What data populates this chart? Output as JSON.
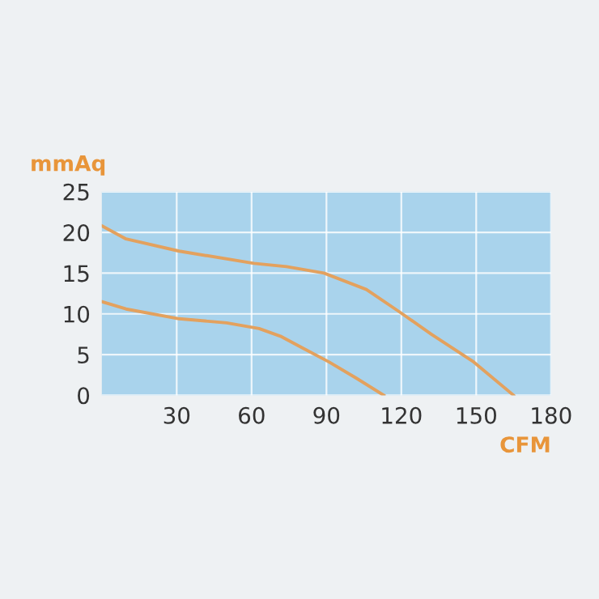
{
  "chart_data": {
    "type": "line",
    "xlabel": "CFM",
    "ylabel": "mmAq",
    "xlim": [
      0,
      180
    ],
    "xticks": [
      30,
      60,
      90,
      120,
      150,
      180
    ],
    "ylim": [
      0,
      25
    ],
    "yticks": [
      0,
      5,
      10,
      15,
      20,
      25
    ],
    "grid": true,
    "marker": "none",
    "line_style": "solid",
    "series": [
      {
        "color": "#e3a15e",
        "x": [
          0,
          9.7,
          31,
          61,
          74,
          89,
          106,
          119,
          132,
          149,
          165
        ],
        "values": [
          20.8,
          19.2,
          17.7,
          16.2,
          15.8,
          15.0,
          13.0,
          10.3,
          7.5,
          4.1,
          0
        ]
      },
      {
        "color": "#e3a15e",
        "x": [
          0,
          9.7,
          31,
          50,
          63,
          72,
          80.5,
          91,
          102,
          113
        ],
        "values": [
          11.5,
          10.6,
          9.4,
          8.9,
          8.2,
          7.2,
          5.8,
          4.1,
          2.1,
          0
        ]
      }
    ]
  }
}
